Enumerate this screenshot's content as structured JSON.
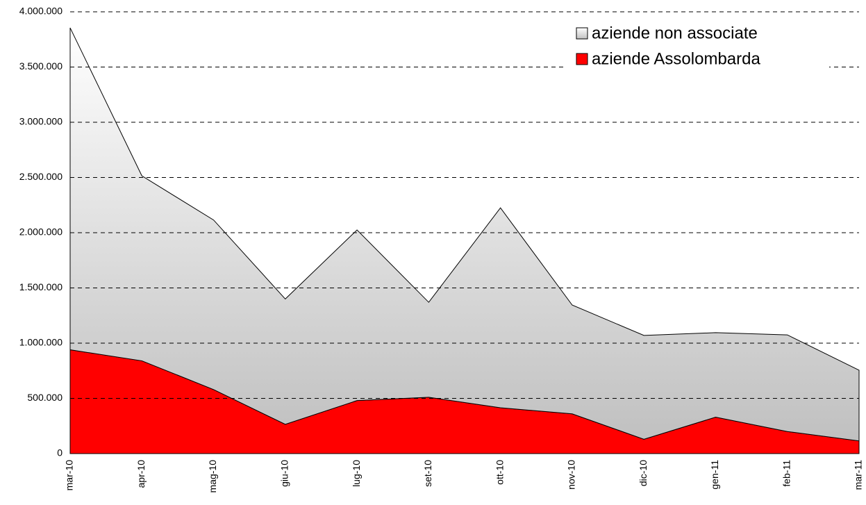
{
  "chart_data": {
    "type": "stacked_area",
    "categories": [
      "mar-10",
      "apr-10",
      "mag-10",
      "giu-10",
      "lug-10",
      "set-10",
      "ott-10",
      "nov-10",
      "dic-10",
      "gen-11",
      "feb-11",
      "mar-11"
    ],
    "series": [
      {
        "name": "aziende Assolombarda",
        "color": "#ff0000",
        "values": [
          940000,
          840000,
          580000,
          265000,
          480000,
          510000,
          415000,
          360000,
          130000,
          330000,
          200000,
          115000
        ]
      },
      {
        "name": "aziende non associate",
        "color": "#c0c0c0",
        "values": [
          2915000,
          1675000,
          1535000,
          1135000,
          1545000,
          860000,
          1810000,
          985000,
          940000,
          765000,
          875000,
          640000
        ]
      }
    ],
    "ylim": [
      0,
      4000000
    ],
    "yticks": [
      0,
      {
        "value": 500000,
        "label": "500.000"
      },
      {
        "value": 1000000,
        "label": "1.000.000"
      },
      {
        "value": 1500000,
        "label": "1.500.000"
      },
      {
        "value": 2000000,
        "label": "2.000.000"
      },
      {
        "value": 2500000,
        "label": "2.500.000"
      },
      {
        "value": 3000000,
        "label": "3.000.000"
      },
      {
        "value": 3500000,
        "label": "3.500.000"
      },
      {
        "value": 4000000,
        "label": "4.000.000"
      }
    ],
    "grid": true,
    "legend": "top-right"
  }
}
